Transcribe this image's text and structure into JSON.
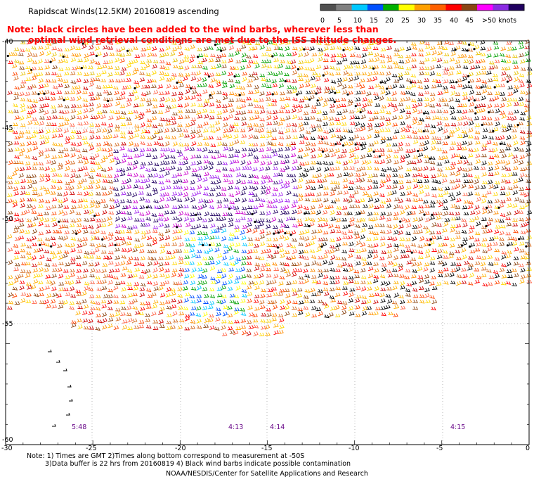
{
  "title": "Rapidscat Winds(12.5KM) 20160819 ascending",
  "warning": {
    "line1": "Note: black circles have been added to the wind barbs, wherever less than",
    "line2": "optimal wind retrieval conditions are met due to the ISS altitude changes."
  },
  "legend": {
    "labels": [
      "0",
      "5",
      "10",
      "15",
      "20",
      "25",
      "30",
      "35",
      "40",
      "45",
      ">50 knots"
    ],
    "colors": [
      "#505050",
      "#808080",
      "#00c8ff",
      "#0050ff",
      "#00b000",
      "#ffff00",
      "#ffa000",
      "#ff6000",
      "#ff0000",
      "#8b4513",
      "#ff00ff",
      "#8a2be2",
      "#200060"
    ]
  },
  "axes": {
    "lat_labels": [
      "-40",
      "-45",
      "-50",
      "-55",
      "-60"
    ],
    "lon_labels": [
      "-30",
      "-25",
      "-20",
      "-15",
      "-10",
      "-5",
      "0"
    ]
  },
  "time_labels": [
    "5:48",
    "4:13",
    "4:14",
    "4:15"
  ],
  "footer": {
    "notes_line1": "Note: 1) Times are GMT 2)Times along bottom correspond to measurement at -50S",
    "notes_line2": "3)Data buffer is 22 hrs from 20160819 4) Black wind barbs indicate possible contamination",
    "credit": "NOAA/NESDIS/Center for Satellite Applications and Research"
  }
}
